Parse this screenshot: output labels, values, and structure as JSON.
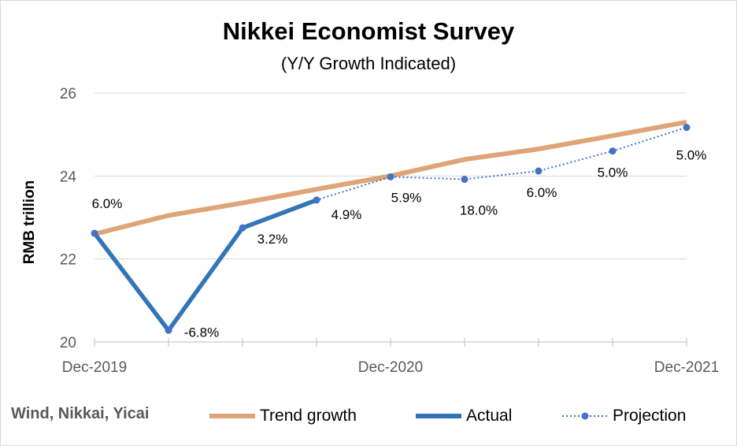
{
  "chart_data": {
    "type": "line",
    "title": "Nikkei Economist Survey",
    "subtitle": "(Y/Y Growth Indicated)",
    "ylabel": "RMB trillion",
    "xlabel": "",
    "source": "Wind, Nikkai, Yicai",
    "ylim": [
      20,
      26
    ],
    "yticks": [
      20,
      22,
      24,
      26
    ],
    "x_tick_labels": [
      "Dec-2019",
      "Dec-2020",
      "Dec-2021"
    ],
    "x_tick_positions": [
      0,
      4,
      8
    ],
    "grid": true,
    "legend_placement": "bottom",
    "series": [
      {
        "name": "Trend growth",
        "color": "#dfa477",
        "style": "solid-thick",
        "x": [
          0,
          1,
          2,
          3,
          4,
          5,
          6,
          7,
          8
        ],
        "values": [
          22.6,
          23.05,
          23.35,
          23.68,
          24.0,
          24.4,
          24.65,
          24.97,
          25.3
        ]
      },
      {
        "name": "Actual",
        "color": "#2f75b5",
        "style": "solid-thick",
        "x": [
          0,
          1,
          2,
          3
        ],
        "values": [
          22.62,
          20.28,
          22.75,
          23.42
        ]
      },
      {
        "name": "Projection",
        "color": "#4472c4",
        "style": "dotted-markers",
        "x": [
          0,
          1,
          2,
          3,
          4,
          5,
          6,
          7,
          8
        ],
        "values": [
          22.62,
          20.28,
          22.75,
          23.42,
          23.98,
          23.92,
          24.12,
          24.6,
          25.17
        ]
      }
    ],
    "data_labels": [
      {
        "x": 0,
        "text": "6.0%"
      },
      {
        "x": 1,
        "text": "-6.8%"
      },
      {
        "x": 2,
        "text": "3.2%"
      },
      {
        "x": 3,
        "text": "4.9%"
      },
      {
        "x": 4,
        "text": "5.9%"
      },
      {
        "x": 5,
        "text": "18.0%"
      },
      {
        "x": 6,
        "text": "6.0%"
      },
      {
        "x": 7,
        "text": "5.0%"
      },
      {
        "x": 8,
        "text": "5.0%"
      }
    ]
  },
  "colors": {
    "gridline": "#d9d9d9",
    "axis": "#bfbfbf",
    "tick_text": "#595959"
  }
}
